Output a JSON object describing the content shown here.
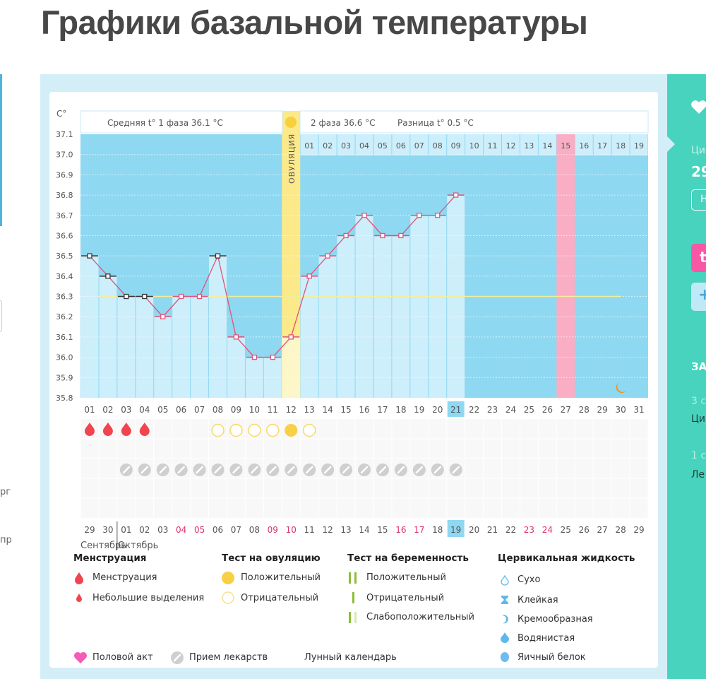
{
  "title": "Графики базальной температуры",
  "left_edge": {
    "snip1": "рг",
    "snip2": "пр"
  },
  "right_panel": {
    "label1": "Ци",
    "value1": "29",
    "button1": "Н",
    "button2": "t",
    "button3": "+",
    "heading": "ЗА",
    "item1_meta": "3 с",
    "item1_text": "Ци",
    "item2_meta": "1 с",
    "item2_text": "Ле"
  },
  "header": {
    "phase1": "Средняя t° 1 фаза 36.1 °C",
    "phase2": "2 фаза 36.6 °C",
    "diff": "Разница t° 0.5 °C",
    "ovulation_label": "ОВУЛЯЦИЯ",
    "unit": "C°"
  },
  "colors": {
    "plot_bg": "#8fd8f1",
    "bar": "#cdeefb",
    "ovulation": "#fbe98a",
    "pink_day": "#f9aec5",
    "line": "#e0527a",
    "coverline": "#f3ef9a",
    "teal": "#47d3bd"
  },
  "chart_data": {
    "type": "line",
    "title": "Графики базальной температуры",
    "ylabel": "C°",
    "ylim": [
      35.8,
      37.1
    ],
    "y_ticks": [
      "37.1",
      "37.0",
      "36.9",
      "36.8",
      "36.7",
      "36.6",
      "36.5",
      "36.4",
      "36.3",
      "36.2",
      "36.1",
      "36.0",
      "35.9",
      "35.8"
    ],
    "cycle_days": [
      "01",
      "02",
      "03",
      "04",
      "05",
      "06",
      "07",
      "08",
      "09",
      "10",
      "11",
      "12",
      "13",
      "14",
      "15",
      "16",
      "17",
      "18",
      "19",
      "20",
      "21",
      "22",
      "23",
      "24",
      "25",
      "26",
      "27",
      "28",
      "29",
      "30",
      "31"
    ],
    "current_cycle_day": "21",
    "temperatures": [
      36.5,
      36.4,
      36.3,
      36.3,
      36.2,
      36.3,
      36.3,
      36.5,
      36.1,
      36.0,
      36.0,
      36.1,
      36.4,
      36.5,
      36.6,
      36.7,
      36.6,
      36.6,
      36.7,
      36.7,
      36.8
    ],
    "black_marker_days": [
      1,
      2,
      3,
      4,
      8
    ],
    "coverline": 36.3,
    "ovulation_day": 12,
    "dpo_labels": [
      "01",
      "02",
      "03",
      "04",
      "05",
      "06",
      "07",
      "08",
      "09",
      "10",
      "11",
      "12",
      "13",
      "14",
      "15",
      "16",
      "17",
      "18",
      "19"
    ],
    "highlighted_dpo": "15",
    "highlighted_day": 27,
    "moon_day": 30,
    "menstruation_days": [
      1,
      2,
      3,
      4
    ],
    "ovulation_test_negative_days": [
      8,
      9,
      10,
      11,
      13
    ],
    "ovulation_test_positive_days": [
      12
    ],
    "medication_days": [
      3,
      4,
      5,
      6,
      7,
      8,
      9,
      10,
      11,
      12,
      13,
      14,
      15,
      16,
      17,
      18,
      19,
      20,
      21
    ],
    "dates": [
      "29",
      "30",
      "01",
      "02",
      "03",
      "04",
      "05",
      "06",
      "07",
      "08",
      "09",
      "10",
      "11",
      "12",
      "13",
      "14",
      "15",
      "16",
      "17",
      "18",
      "19",
      "20",
      "21",
      "22",
      "23",
      "24",
      "25",
      "26",
      "27",
      "28",
      "29"
    ],
    "weekend_date_indices": [
      5,
      6,
      10,
      11,
      17,
      18,
      24,
      25
    ],
    "today_date": "19",
    "months": [
      "Сентябрь",
      "Октябрь"
    ]
  },
  "legend": {
    "menstruation": {
      "heading": "Менструация",
      "items": [
        "Менструация",
        "Небольшие выделения"
      ]
    },
    "ovulation_test": {
      "heading": "Тест на овуляцию",
      "items": [
        "Положительный",
        "Отрицательный"
      ]
    },
    "pregnancy_test": {
      "heading": "Тест на беременность",
      "items": [
        "Положительный",
        "Отрицательный",
        "Слабоположительный"
      ]
    },
    "cervical": {
      "heading": "Цервикальная жидкость",
      "items": [
        "Сухо",
        "Клейкая",
        "Кремообразная",
        "Водянистая",
        "Яичный белок"
      ]
    },
    "other": [
      "Половой акт",
      "Прием лекарств",
      "Лунный календарь"
    ]
  }
}
